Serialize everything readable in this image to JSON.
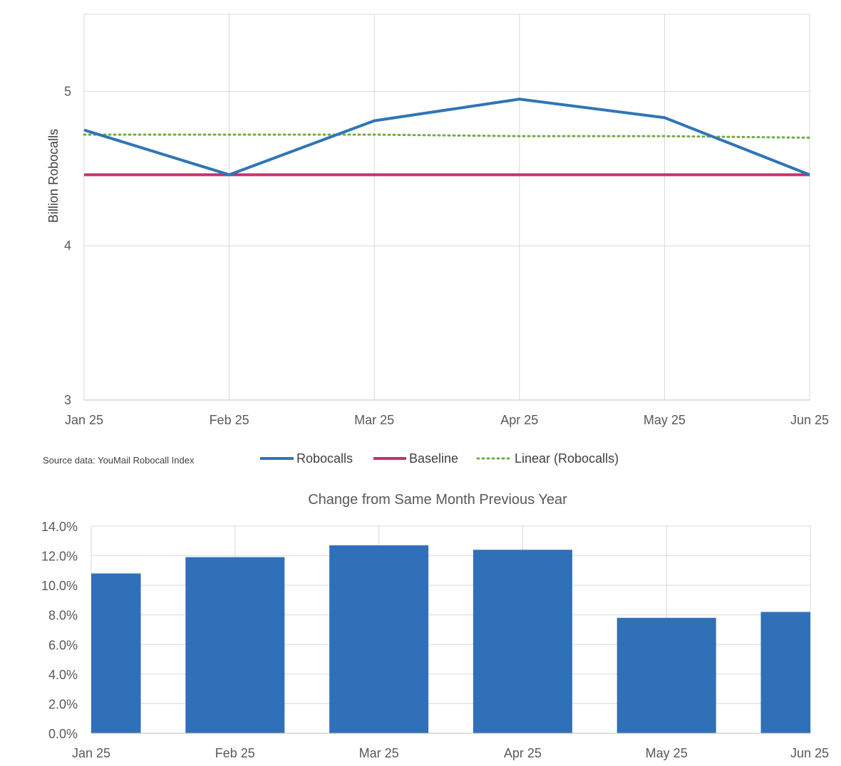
{
  "source_note": "Source data: YouMail Robocall Index",
  "chart_data": [
    {
      "type": "line",
      "title": "",
      "xlabel": "",
      "ylabel": "Billion Robocalls",
      "categories": [
        "Jan 25",
        "Feb 25",
        "Mar 25",
        "Apr 25",
        "May 25",
        "Jun 25"
      ],
      "ylim": [
        3,
        5.5
      ],
      "yticks": [
        "3",
        "4",
        "5"
      ],
      "ytick_values": [
        3,
        4,
        5
      ],
      "grid": true,
      "legend_placement": "bottom",
      "series": [
        {
          "name": "Robocalls",
          "values": [
            4.75,
            4.46,
            4.81,
            4.95,
            4.83,
            4.46
          ],
          "color": "#2e75b6",
          "style": "solid"
        },
        {
          "name": "Baseline",
          "values": [
            4.46,
            4.46,
            4.46,
            4.46,
            4.46,
            4.46
          ],
          "color": "#c0336f",
          "style": "solid"
        },
        {
          "name": "Linear (Robocalls)",
          "values": [
            4.72,
            4.72,
            4.72,
            4.71,
            4.71,
            4.7
          ],
          "color": "#70ad47",
          "style": "dotted"
        }
      ]
    },
    {
      "type": "bar",
      "title": "Change from Same Month Previous Year",
      "xlabel": "",
      "ylabel": "",
      "categories": [
        "Jan 25",
        "Feb 25",
        "Mar 25",
        "Apr 25",
        "May 25",
        "Jun 25"
      ],
      "values": [
        10.8,
        11.9,
        12.7,
        12.4,
        7.8,
        8.2
      ],
      "ylim": [
        0,
        14
      ],
      "yticks": [
        "0.0%",
        "2.0%",
        "4.0%",
        "6.0%",
        "8.0%",
        "10.0%",
        "12.0%",
        "14.0%"
      ],
      "ytick_values": [
        0,
        2,
        4,
        6,
        8,
        10,
        12,
        14
      ],
      "grid": true,
      "color": "#3070b8"
    }
  ]
}
